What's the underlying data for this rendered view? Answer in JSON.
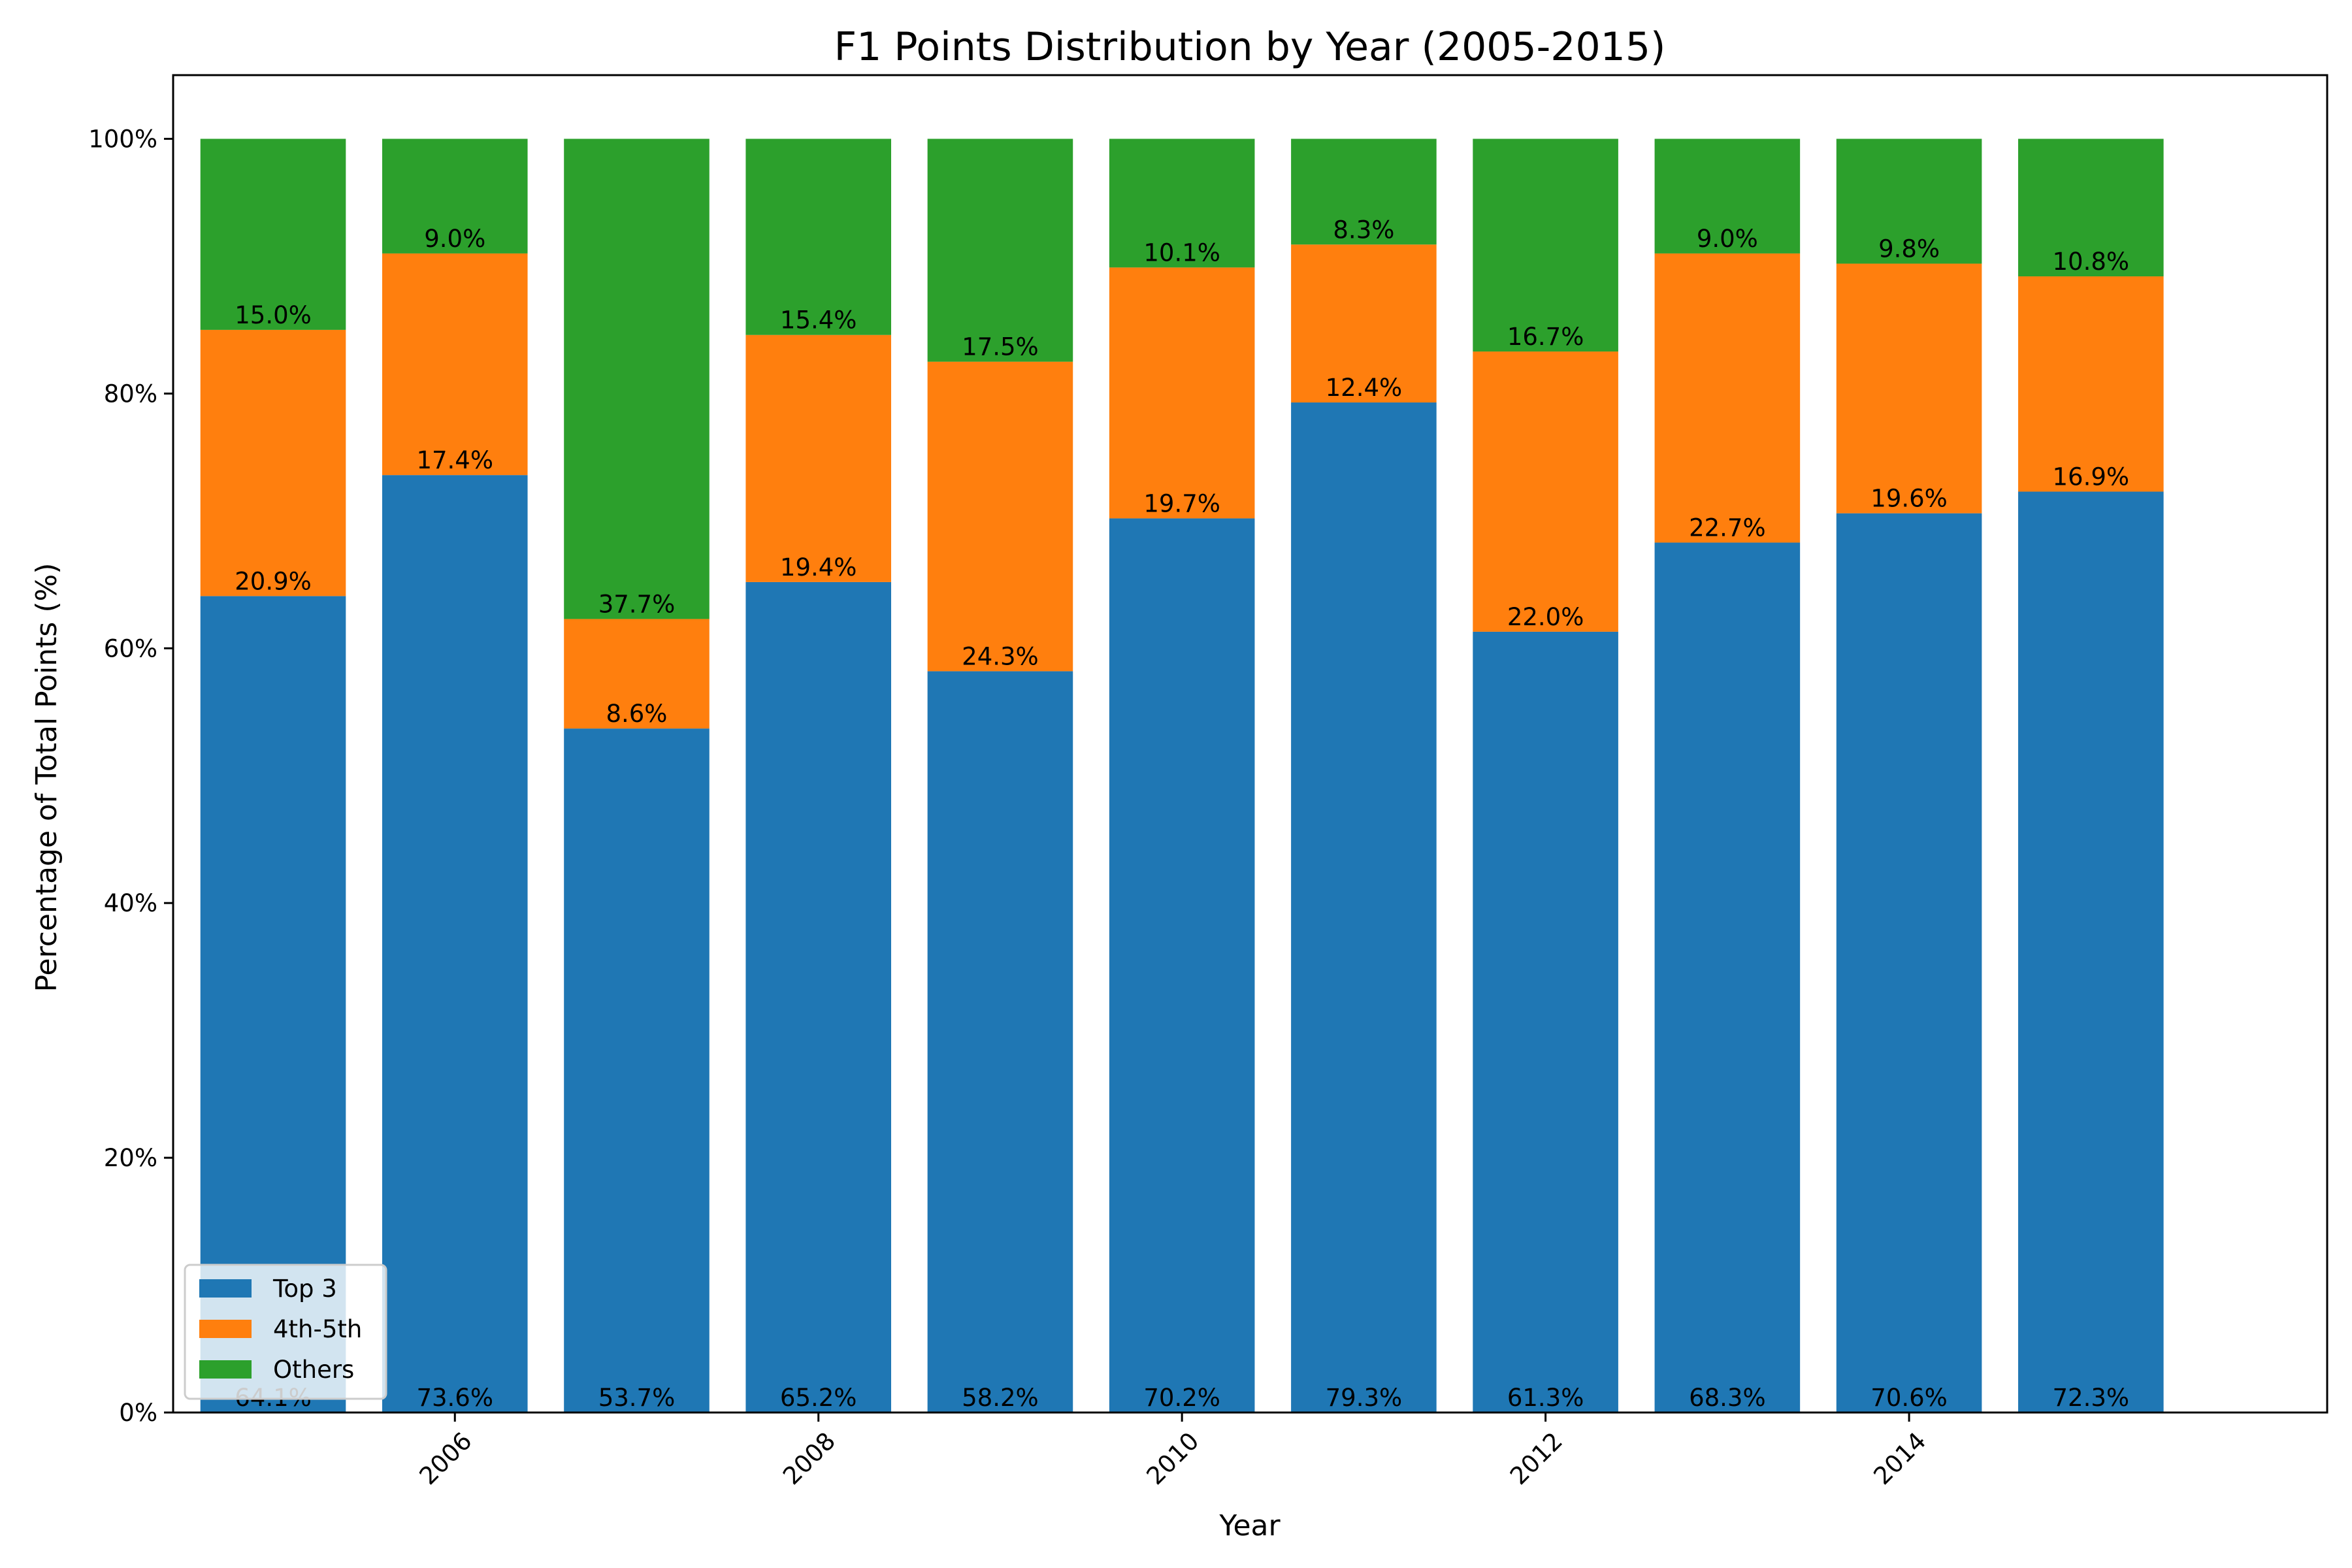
{
  "chart_data": {
    "type": "bar",
    "stacked": true,
    "title": "F1 Points Distribution by Year (2005-2015)",
    "xlabel": "Year",
    "ylabel": "Percentage of Total Points (%)",
    "x": [
      2005,
      2006,
      2007,
      2008,
      2009,
      2010,
      2011,
      2012,
      2013,
      2014,
      2015
    ],
    "x_ticks": [
      2006,
      2008,
      2010,
      2012,
      2014
    ],
    "x_tick_labels": [
      "2006",
      "2008",
      "2010",
      "2012",
      "2014"
    ],
    "xlim": [
      2004.45,
      2016.3
    ],
    "ylim": [
      0,
      105
    ],
    "y_ticks": [
      0,
      20,
      40,
      60,
      80,
      100
    ],
    "y_tick_labels": [
      "0%",
      "20%",
      "40%",
      "60%",
      "80%",
      "100%"
    ],
    "grid": false,
    "legend_position": "lower-left",
    "series": [
      {
        "name": "Top 3",
        "color": "#1f77b4",
        "values": [
          64.1,
          73.6,
          53.7,
          65.2,
          58.2,
          70.2,
          79.3,
          61.3,
          68.3,
          70.6,
          72.3
        ],
        "labels": [
          "64.1%",
          "73.6%",
          "53.7%",
          "65.2%",
          "58.2%",
          "70.2%",
          "79.3%",
          "61.3%",
          "68.3%",
          "70.6%",
          "72.3%"
        ]
      },
      {
        "name": "4th-5th",
        "color": "#ff7f0e",
        "values": [
          20.9,
          17.4,
          8.6,
          19.4,
          24.3,
          19.7,
          12.4,
          22.0,
          22.7,
          19.6,
          16.9
        ],
        "labels": [
          "20.9%",
          "17.4%",
          "8.6%",
          "19.4%",
          "24.3%",
          "19.7%",
          "12.4%",
          "22.0%",
          "22.7%",
          "19.6%",
          "16.9%"
        ]
      },
      {
        "name": "Others",
        "color": "#2ca02c",
        "values": [
          15.0,
          9.0,
          37.7,
          15.4,
          17.5,
          10.1,
          8.3,
          16.7,
          9.0,
          9.8,
          10.8
        ],
        "labels": [
          "15.0%",
          "9.0%",
          "37.7%",
          "15.4%",
          "17.5%",
          "10.1%",
          "8.3%",
          "16.7%",
          "9.0%",
          "9.8%",
          "10.8%"
        ]
      }
    ]
  }
}
